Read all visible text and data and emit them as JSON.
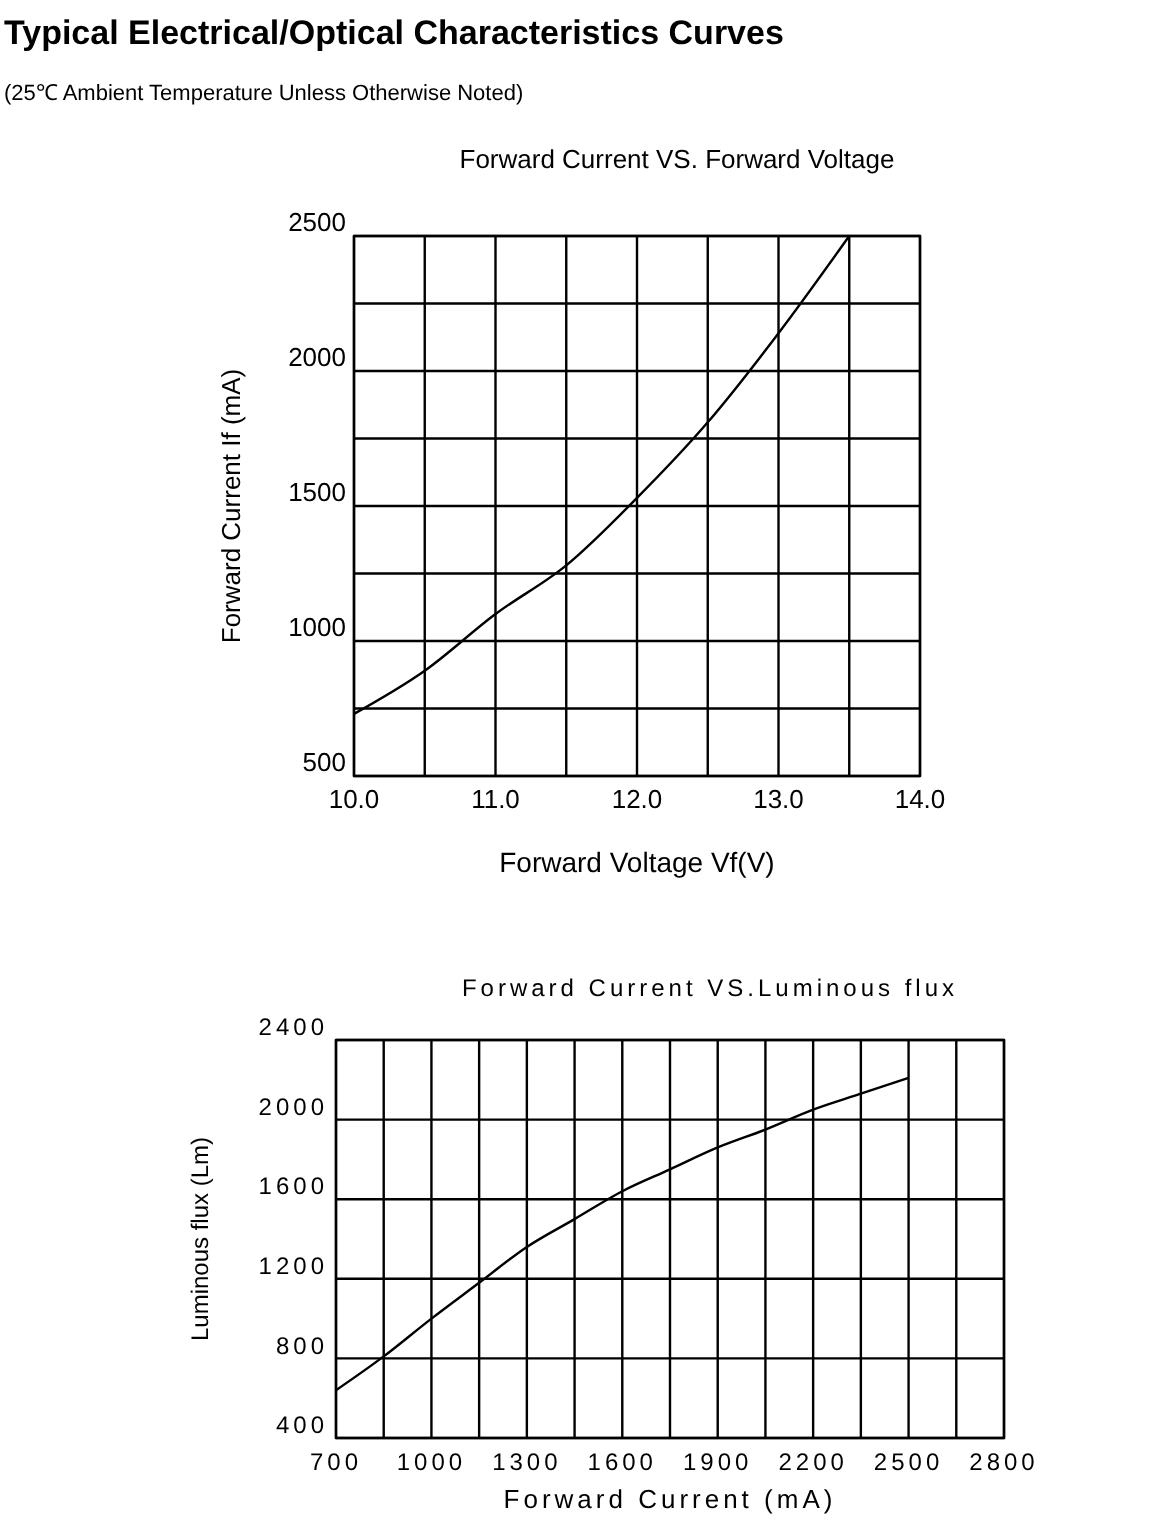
{
  "chart_data": [
    {
      "type": "line",
      "title": "Forward Current  VS. Forward Voltage",
      "xlabel": "Forward Voltage Vf(V)",
      "ylabel": "Forward Current  If (mA)",
      "annotations": [
        "Typical Electrical/Optical Characteristics Curves",
        "(25℃ Ambient Temperature Unless Otherwise Noted)"
      ],
      "x": [
        10,
        10.5,
        11,
        11.5,
        12,
        12.5,
        13,
        13.5
      ],
      "series": [
        {
          "color": "#000000",
          "values": [
            730,
            890,
            1100,
            1280,
            1530,
            1810,
            2140,
            2500
          ]
        }
      ],
      "xlim": [
        10,
        14
      ],
      "ylim": [
        500,
        2500
      ],
      "xticks": [
        {
          "value": 10,
          "label": "10.0"
        },
        {
          "value": 10.5,
          "label": null
        },
        {
          "value": 11,
          "label": "11.0"
        },
        {
          "value": 11.5,
          "label": null
        },
        {
          "value": 12,
          "label": "12.0"
        },
        {
          "value": 12.5,
          "label": null
        },
        {
          "value": 13,
          "label": "13.0"
        },
        {
          "value": 13.5,
          "label": null
        },
        {
          "value": 14,
          "label": "14.0"
        }
      ],
      "yticks": [
        500,
        {
          "value": 750,
          "label": null
        },
        1000,
        {
          "value": 1250,
          "label": null
        },
        1500,
        {
          "value": 1750,
          "label": null
        },
        2000,
        {
          "value": 2250,
          "label": null
        },
        2500
      ],
      "grid": true,
      "marker": "none",
      "line_style": "solid"
    },
    {
      "type": "line",
      "title": "Forward Current VS.Luminous flux",
      "xlabel": "Forward Current (mA)",
      "ylabel": "Luminous flux (Lm)",
      "x": [
        700,
        850,
        1000,
        1150,
        1300,
        1450,
        1600,
        1750,
        1900,
        2050,
        2200,
        2350,
        2500
      ],
      "series": [
        {
          "color": "#000000",
          "values": [
            640,
            810,
            1000,
            1180,
            1360,
            1500,
            1640,
            1750,
            1860,
            1950,
            2050,
            2130,
            2210
          ]
        }
      ],
      "xlim": [
        700,
        2800
      ],
      "ylim": [
        400,
        2400
      ],
      "xticks": [
        700,
        {
          "value": 850,
          "label": null
        },
        1000,
        {
          "value": 1150,
          "label": null
        },
        1300,
        {
          "value": 1450,
          "label": null
        },
        1600,
        {
          "value": 1750,
          "label": null
        },
        1900,
        {
          "value": 2050,
          "label": null
        },
        2200,
        {
          "value": 2350,
          "label": null
        },
        2500,
        {
          "value": 2650,
          "label": null
        },
        2800
      ],
      "yticks": [
        400,
        800,
        1200,
        1600,
        2000,
        2400
      ],
      "grid": true,
      "marker": "none",
      "line_style": "solid"
    }
  ]
}
